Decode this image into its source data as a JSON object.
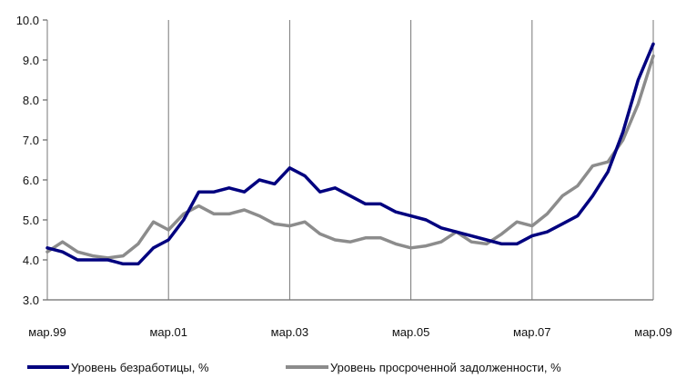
{
  "chart_data": {
    "type": "line",
    "title": "",
    "xlabel": "",
    "ylabel": "",
    "ylim": [
      3.0,
      10.0
    ],
    "yticks": [
      "3.0",
      "4.0",
      "5.0",
      "6.0",
      "7.0",
      "8.0",
      "9.0",
      "10.0"
    ],
    "xticks": [
      "мар.99",
      "мар.01",
      "мар.03",
      "мар.05",
      "мар.07",
      "мар.09"
    ],
    "x": [
      "мар.99",
      "июн.99",
      "сен.99",
      "дек.99",
      "мар.00",
      "июн.00",
      "сен.00",
      "дек.00",
      "мар.01",
      "июн.01",
      "сен.01",
      "дек.01",
      "мар.02",
      "июн.02",
      "сен.02",
      "дек.02",
      "мар.03",
      "июн.03",
      "сен.03",
      "дек.03",
      "мар.04",
      "июн.04",
      "сен.04",
      "дек.04",
      "мар.05",
      "июн.05",
      "сен.05",
      "дек.05",
      "мар.06",
      "июн.06",
      "сен.06",
      "дек.06",
      "мар.07",
      "июн.07",
      "сен.07",
      "дек.07",
      "мар.08",
      "июн.08",
      "сен.08",
      "дек.08",
      "мар.09"
    ],
    "grid": false,
    "legend_position": "bottom",
    "series": [
      {
        "name": "Уровень безработицы, %",
        "color": "#00007f",
        "values": [
          4.3,
          4.2,
          4.0,
          4.0,
          4.0,
          3.9,
          3.9,
          4.3,
          4.5,
          5.0,
          5.7,
          5.7,
          5.8,
          5.7,
          6.0,
          5.9,
          6.3,
          6.1,
          5.7,
          5.8,
          5.6,
          5.4,
          5.4,
          5.2,
          5.1,
          5.0,
          4.8,
          4.7,
          4.6,
          4.5,
          4.4,
          4.4,
          4.6,
          4.7,
          4.9,
          5.1,
          5.6,
          6.2,
          7.2,
          8.5,
          9.4
        ]
      },
      {
        "name": "Уровень просроченной задолженности, %",
        "color": "#8c8c8c",
        "values": [
          4.2,
          4.45,
          4.2,
          4.1,
          4.05,
          4.1,
          4.4,
          4.95,
          4.75,
          5.15,
          5.35,
          5.15,
          5.15,
          5.25,
          5.1,
          4.9,
          4.85,
          4.95,
          4.65,
          4.5,
          4.45,
          4.55,
          4.55,
          4.4,
          4.3,
          4.35,
          4.45,
          4.7,
          4.45,
          4.4,
          4.65,
          4.95,
          4.85,
          5.15,
          5.6,
          5.85,
          6.35,
          6.45,
          7.0,
          7.9,
          9.1
        ]
      }
    ]
  }
}
